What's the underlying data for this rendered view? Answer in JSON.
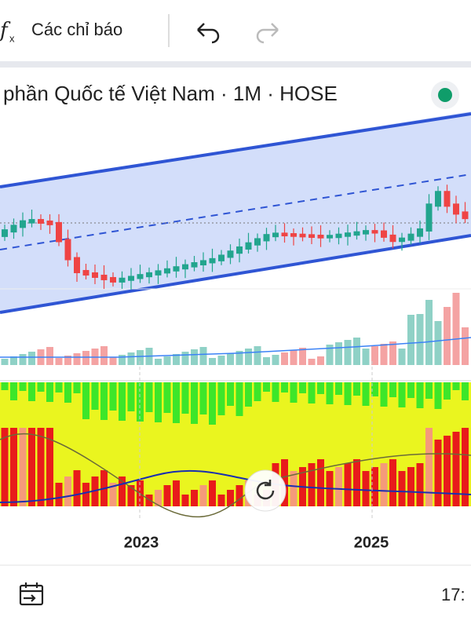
{
  "toolbar": {
    "indicators": "Các chỉ báo"
  },
  "chart_header": {
    "title": "phần Quốc tế Việt Nam · 1M · HOSE"
  },
  "x_axis": {
    "labels": [
      "2023",
      "2025"
    ]
  },
  "status_bar": {
    "time": "17:"
  }
}
